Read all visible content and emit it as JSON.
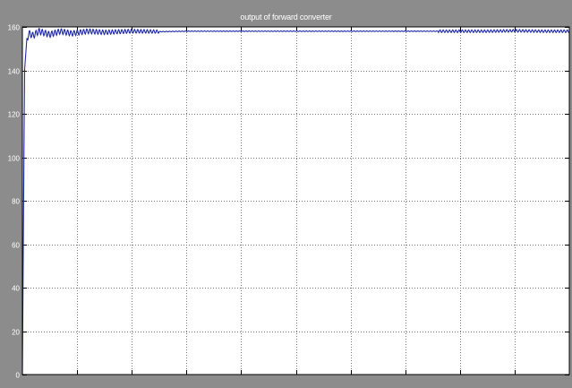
{
  "window": {
    "title": "output of forward converter"
  },
  "colors": {
    "window_bg": "#8c8c8c",
    "axes_bg": "#ffffff",
    "grid": "#7a7a7a",
    "axis": "#000000",
    "trace": "#1f2aa8",
    "reference": "#333333",
    "label_text": "#ffffff"
  },
  "chart_data": {
    "type": "line",
    "title": "output of forward converter",
    "xlabel": "",
    "ylabel": "",
    "ylim": [
      0,
      160
    ],
    "y_ticks": [
      0,
      20,
      40,
      60,
      80,
      100,
      120,
      140,
      160
    ],
    "y_tick_labels": [
      "0",
      "20",
      "40",
      "60",
      "80",
      "100",
      "120",
      "140",
      "160"
    ],
    "x_ticks_count": 10,
    "x_tick_labels": [],
    "grid": true,
    "legend": "none",
    "series": [
      {
        "color": "#1f2aa8",
        "x": [
          0,
          0.004,
          0.008,
          0.012,
          0.02,
          0.03,
          0.05,
          0.07,
          0.09,
          0.12,
          0.15,
          0.2,
          0.25,
          0.3,
          0.35,
          0.4,
          0.45,
          0.5,
          0.55,
          0.6,
          0.65,
          0.7,
          0.75,
          0.8,
          0.85,
          0.9,
          0.95,
          1.0
        ],
        "values": [
          0,
          140,
          154,
          157,
          156,
          158,
          156.5,
          158,
          157,
          158,
          157.5,
          158,
          157.8,
          158,
          158,
          158,
          158,
          158,
          158,
          158,
          158,
          158,
          158,
          158,
          158,
          158.2,
          158,
          158
        ]
      }
    ]
  }
}
